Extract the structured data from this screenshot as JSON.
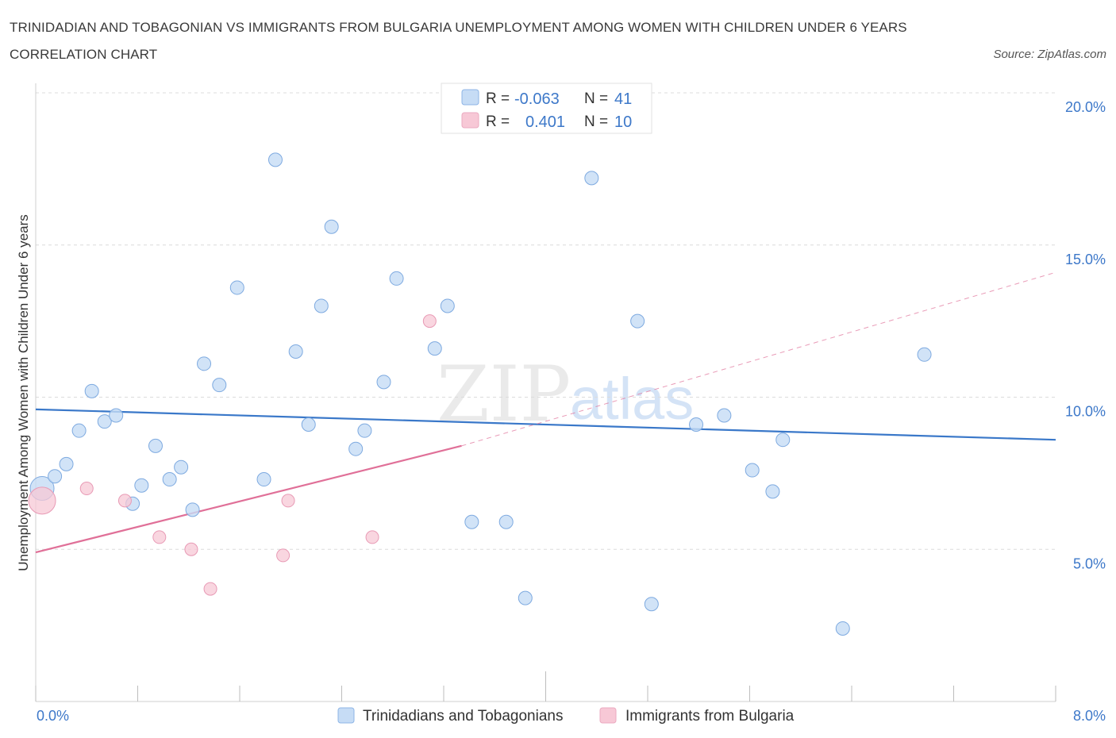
{
  "title": "TRINIDADIAN AND TOBAGONIAN VS IMMIGRANTS FROM BULGARIA UNEMPLOYMENT AMONG WOMEN WITH CHILDREN UNDER 6 YEARS CORRELATION CHART",
  "source": "Source: ZipAtlas.com",
  "watermark": {
    "zip": "ZIP",
    "atlas": "atlas"
  },
  "colors": {
    "blue": "#3a78c9",
    "pink": "#e07098",
    "blue_fill": "#c6dcf5",
    "pink_fill": "#f7c8d6"
  },
  "legend": {
    "rows": [
      {
        "r_label": "R =",
        "r_value": "-0.063",
        "n_label": "N =",
        "n_value": "41"
      },
      {
        "r_label": "R =",
        "r_value": "0.401",
        "n_label": "N =",
        "n_value": "10"
      }
    ]
  },
  "chart_data": {
    "type": "scatter",
    "title": "TRINIDADIAN AND TOBAGONIAN VS IMMIGRANTS FROM BULGARIA UNEMPLOYMENT AMONG WOMEN WITH CHILDREN UNDER 6 YEARS CORRELATION CHART",
    "xlabel": "",
    "ylabel": "Unemployment Among Women with Children Under 6 years",
    "xlim": [
      0,
      8
    ],
    "ylim": [
      0,
      20
    ],
    "x_tick_labels": [
      "0.0%",
      "8.0%"
    ],
    "y_tick_labels": [
      "5.0%",
      "10.0%",
      "15.0%",
      "20.0%"
    ],
    "y_ticks": [
      5,
      10,
      15,
      20
    ],
    "grid": true,
    "series": [
      {
        "name": "Trinidadians and Tobagonians",
        "color": "#3a78c9",
        "R": -0.063,
        "N": 41,
        "trend": {
          "x": [
            0,
            8
          ],
          "y": [
            9.6,
            8.6
          ]
        },
        "points": [
          [
            0.05,
            7.0
          ],
          [
            0.15,
            7.4
          ],
          [
            0.24,
            7.8
          ],
          [
            0.34,
            8.9
          ],
          [
            0.44,
            10.2
          ],
          [
            0.54,
            9.2
          ],
          [
            0.63,
            9.4
          ],
          [
            0.76,
            6.5
          ],
          [
            0.83,
            7.1
          ],
          [
            0.94,
            8.4
          ],
          [
            1.05,
            7.3
          ],
          [
            1.14,
            7.7
          ],
          [
            1.23,
            6.3
          ],
          [
            1.32,
            11.1
          ],
          [
            1.44,
            10.4
          ],
          [
            1.58,
            13.6
          ],
          [
            1.79,
            7.3
          ],
          [
            1.88,
            17.8
          ],
          [
            2.04,
            11.5
          ],
          [
            2.14,
            9.1
          ],
          [
            2.24,
            13.0
          ],
          [
            2.32,
            15.6
          ],
          [
            2.51,
            8.3
          ],
          [
            2.58,
            8.9
          ],
          [
            2.73,
            10.5
          ],
          [
            2.83,
            13.9
          ],
          [
            3.13,
            11.6
          ],
          [
            3.23,
            13.0
          ],
          [
            3.42,
            5.9
          ],
          [
            3.69,
            5.9
          ],
          [
            3.84,
            3.4
          ],
          [
            4.36,
            17.2
          ],
          [
            4.72,
            12.5
          ],
          [
            4.83,
            3.2
          ],
          [
            5.18,
            9.1
          ],
          [
            5.4,
            9.4
          ],
          [
            5.62,
            7.6
          ],
          [
            5.78,
            6.9
          ],
          [
            5.86,
            8.6
          ],
          [
            6.33,
            2.4
          ],
          [
            6.97,
            11.4
          ]
        ]
      },
      {
        "name": "Immigrants from Bulgaria",
        "color": "#e07098",
        "R": 0.401,
        "N": 10,
        "trend": {
          "x": [
            0,
            3.34
          ],
          "y": [
            4.9,
            8.4
          ],
          "dashed_to": [
            8,
            14.1
          ]
        },
        "points": [
          [
            0.05,
            6.6
          ],
          [
            0.4,
            7.0
          ],
          [
            0.7,
            6.6
          ],
          [
            0.97,
            5.4
          ],
          [
            1.22,
            5.0
          ],
          [
            1.37,
            3.7
          ],
          [
            1.94,
            4.8
          ],
          [
            1.98,
            6.6
          ],
          [
            2.64,
            5.4
          ],
          [
            3.09,
            12.5
          ]
        ]
      }
    ]
  }
}
